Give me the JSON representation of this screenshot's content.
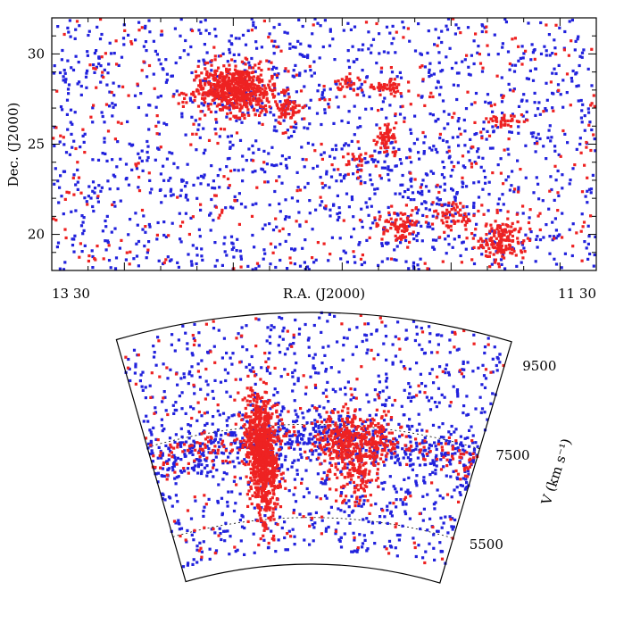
{
  "chart_data": [
    {
      "type": "scatter",
      "title": "",
      "xlabel": "R.A. (J2000)",
      "ylabel": "Dec. (J2000)",
      "x_tick_labels": [
        "13 30",
        "11 30"
      ],
      "xlim": [
        "13 50",
        "11 20"
      ],
      "ylim": [
        18,
        32
      ],
      "yticks": [
        20,
        25,
        30
      ],
      "grid": false,
      "legend": "none",
      "colors": {
        "early": "#ee2222",
        "late": "#2222dd"
      },
      "series": [
        {
          "color": "#ee2222",
          "clusters": [
            {
              "ra_h": 12.98,
              "dec": 28.0,
              "n": 600,
              "spread_ra_h": 0.09,
              "spread_dec": 0.65
            },
            {
              "ra_h": 12.75,
              "dec": 26.9,
              "n": 50,
              "spread_ra_h": 0.03,
              "spread_dec": 0.4
            },
            {
              "ra_h": 12.48,
              "dec": 28.4,
              "n": 30,
              "spread_ra_h": 0.03,
              "spread_dec": 0.3
            },
            {
              "ra_h": 12.3,
              "dec": 25.3,
              "n": 60,
              "spread_ra_h": 0.025,
              "spread_dec": 0.45
            },
            {
              "ra_h": 12.3,
              "dec": 28.2,
              "n": 45,
              "spread_ra_h": 0.04,
              "spread_dec": 0.25
            },
            {
              "ra_h": 12.23,
              "dec": 20.5,
              "n": 80,
              "spread_ra_h": 0.05,
              "spread_dec": 0.45
            },
            {
              "ra_h": 11.98,
              "dec": 21.0,
              "n": 60,
              "spread_ra_h": 0.05,
              "spread_dec": 0.4
            },
            {
              "ra_h": 11.77,
              "dec": 19.6,
              "n": 140,
              "spread_ra_h": 0.05,
              "spread_dec": 0.55
            },
            {
              "ra_h": 11.75,
              "dec": 26.3,
              "n": 40,
              "spread_ra_h": 0.05,
              "spread_dec": 0.25
            },
            {
              "ra_h": 12.42,
              "dec": 24.0,
              "n": 20,
              "spread_ra_h": 0.03,
              "spread_dec": 0.4
            }
          ],
          "field_points": 380
        },
        {
          "color": "#2222dd",
          "clusters": [
            {
              "ra_h": 12.1,
              "dec": 22.5,
              "n": 160,
              "spread_ra_h": 0.2,
              "spread_dec": 2.2
            },
            {
              "ra_h": 12.85,
              "dec": 27.5,
              "n": 80,
              "spread_ra_h": 0.2,
              "spread_dec": 1.5
            }
          ],
          "field_points": 1300
        }
      ]
    },
    {
      "type": "scatter",
      "title": "",
      "xlabel": "",
      "ylabel": "V (km s⁻¹)",
      "tick_labels": [
        "9500",
        "7500",
        "5500"
      ],
      "vlim": [
        4500,
        9900
      ],
      "ralim": [
        "13 50",
        "11 20"
      ],
      "projection": "wedge",
      "grid": true,
      "series": [
        {
          "color": "#ee2222",
          "structures": [
            {
              "ra_h": 12.98,
              "v": 6900,
              "n": 800,
              "spread_ra_h": 0.06,
              "spread_v": 650
            },
            {
              "ra_h": 12.36,
              "v": 7100,
              "n": 220,
              "spread_ra_h": 0.08,
              "spread_v": 380
            },
            {
              "ra_h": 12.2,
              "v": 6800,
              "n": 120,
              "spread_ra_h": 0.06,
              "spread_v": 500
            },
            {
              "ra_h": 12.1,
              "v": 7200,
              "n": 90,
              "spread_ra_h": 0.08,
              "spread_v": 250
            }
          ],
          "wall": {
            "v_center": 7200,
            "v_spread": 180,
            "n": 200
          },
          "field_points": 220
        },
        {
          "color": "#2222dd",
          "wall": {
            "v_center": 7200,
            "v_spread": 230,
            "n": 520
          },
          "field_points": 950
        }
      ]
    }
  ]
}
